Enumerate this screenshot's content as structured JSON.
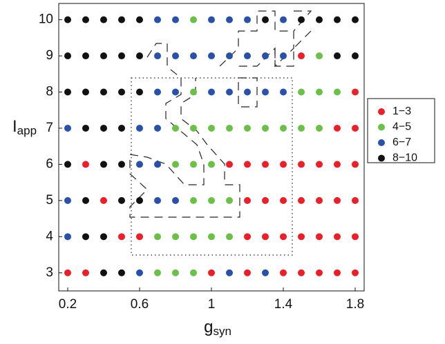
{
  "chart_data": {
    "type": "scatter",
    "xlabel": "g",
    "xlabel_sub": "syn",
    "ylabel": "I",
    "ylabel_sub": "app",
    "xlim": [
      0.15,
      1.85
    ],
    "ylim": [
      2.5,
      10.45
    ],
    "xticks": [
      0.2,
      0.6,
      1,
      1.4,
      1.8
    ],
    "yticks": [
      3,
      4,
      5,
      6,
      7,
      8,
      9,
      10
    ],
    "legend": "right",
    "series": [
      {
        "name": "1−3",
        "color": "#e8202a",
        "x": [
          0.2,
          0.3,
          1.0,
          1.2,
          1.4,
          1.5,
          1.6,
          1.7,
          1.8,
          0.5,
          0.6,
          1.2,
          1.3,
          1.4,
          1.5,
          1.6,
          1.7,
          1.8,
          0.4,
          1.2,
          1.3,
          1.4,
          1.5,
          1.6,
          1.7,
          1.8,
          0.3,
          1.1,
          1.2,
          1.3,
          1.4,
          1.5,
          1.6,
          1.7,
          1.8,
          1.7,
          1.8,
          1.8,
          1.5
        ],
        "y": [
          3,
          3,
          3,
          3,
          3,
          3,
          3,
          3,
          3,
          4,
          4,
          4,
          4,
          4,
          4,
          4,
          4,
          4,
          5,
          5,
          5,
          5,
          5,
          5,
          5,
          5,
          6,
          6,
          6,
          6,
          6,
          6,
          6,
          6,
          6,
          7,
          7,
          8,
          9
        ]
      },
      {
        "name": "4−5",
        "color": "#6cc04a",
        "x": [
          0.7,
          0.8,
          0.9,
          0.7,
          0.8,
          0.9,
          1.0,
          1.1,
          0.9,
          1.0,
          1.1,
          0.8,
          0.9,
          1.0,
          0.8,
          0.9,
          1.0,
          1.1,
          1.2,
          1.3,
          1.4,
          1.5,
          1.6,
          0.9,
          1.5,
          1.6,
          1.7,
          1.6,
          0.9
        ],
        "y": [
          3,
          3,
          3,
          4,
          4,
          4,
          4,
          4,
          5,
          5,
          5,
          6,
          6,
          6,
          7,
          7,
          7,
          7,
          7,
          7,
          7,
          7,
          7,
          8,
          8,
          8,
          8,
          9,
          10
        ]
      },
      {
        "name": "6−7",
        "color": "#2b50a8",
        "x": [
          0.6,
          1.1,
          1.3,
          0.2,
          0.2,
          0.7,
          0.8,
          0.6,
          0.7,
          0.2,
          0.6,
          0.7,
          0.7,
          0.8,
          1.0,
          1.1,
          1.2,
          1.3,
          1.4,
          0.7,
          0.8,
          0.9,
          1.0,
          1.1,
          1.2,
          1.3,
          1.4,
          0.7,
          0.8,
          1.0,
          1.1,
          1.2,
          1.4
        ],
        "y": [
          3,
          3,
          3,
          4,
          5,
          5,
          5,
          6,
          6,
          7,
          7,
          7,
          8,
          8,
          8,
          8,
          8,
          8,
          8,
          9,
          9,
          9,
          9,
          9,
          9,
          9,
          9,
          10,
          10,
          10,
          10,
          10,
          10
        ]
      },
      {
        "name": "8−10",
        "color": "#111111",
        "x": [
          0.4,
          0.5,
          0.3,
          0.4,
          0.3,
          0.5,
          0.6,
          0.2,
          0.4,
          0.5,
          0.3,
          0.4,
          0.5,
          0.2,
          0.3,
          0.4,
          0.5,
          0.6,
          0.2,
          0.3,
          0.4,
          0.5,
          0.6,
          1.7,
          1.8,
          0.2,
          0.3,
          0.4,
          0.5,
          0.6,
          1.3,
          1.5,
          1.6,
          1.7,
          1.8
        ],
        "y": [
          3,
          3,
          4,
          4,
          5,
          5,
          5,
          6,
          6,
          6,
          7,
          7,
          7,
          8,
          8,
          8,
          8,
          8,
          9,
          9,
          9,
          9,
          9,
          9,
          9,
          10,
          10,
          10,
          10,
          10,
          10,
          10,
          10,
          10,
          10
        ]
      }
    ]
  }
}
